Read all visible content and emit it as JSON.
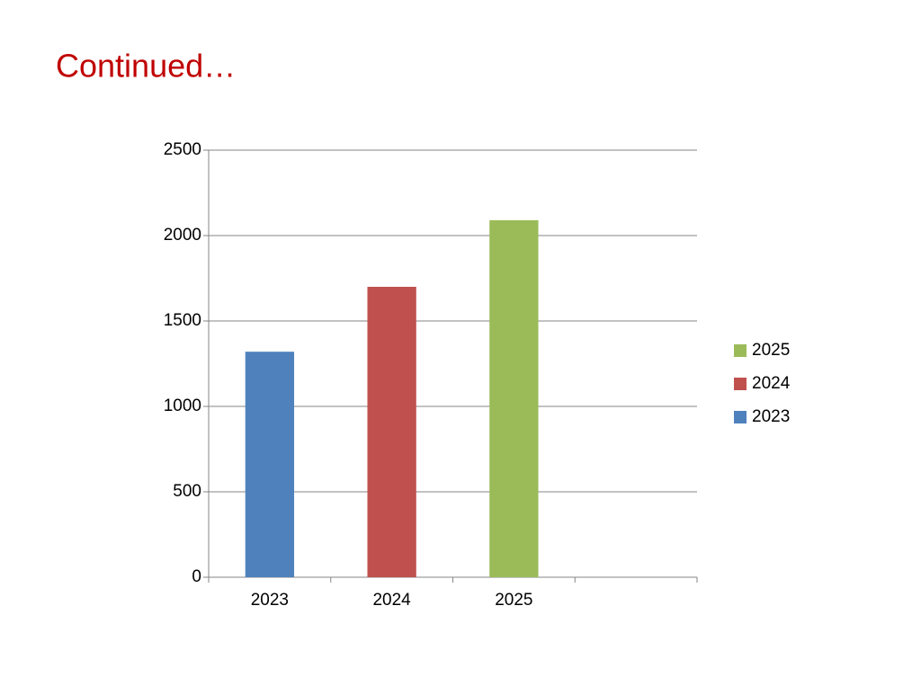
{
  "slide": {
    "title": "Continued…"
  },
  "chart_data": {
    "type": "bar",
    "categories": [
      "2023",
      "2024",
      "2025",
      null
    ],
    "series": [
      {
        "name": "2023",
        "color": "#4f81bd",
        "values": [
          1320,
          null,
          null,
          null
        ]
      },
      {
        "name": "2024",
        "color": "#c0504d",
        "values": [
          null,
          1700,
          null,
          null
        ]
      },
      {
        "name": "2025",
        "color": "#9bbb59",
        "values": [
          null,
          null,
          2090,
          null
        ]
      }
    ],
    "ylim": [
      0,
      2500
    ],
    "yticks": [
      0,
      500,
      1000,
      1500,
      2000,
      2500
    ],
    "grid": true,
    "legend": "right"
  }
}
